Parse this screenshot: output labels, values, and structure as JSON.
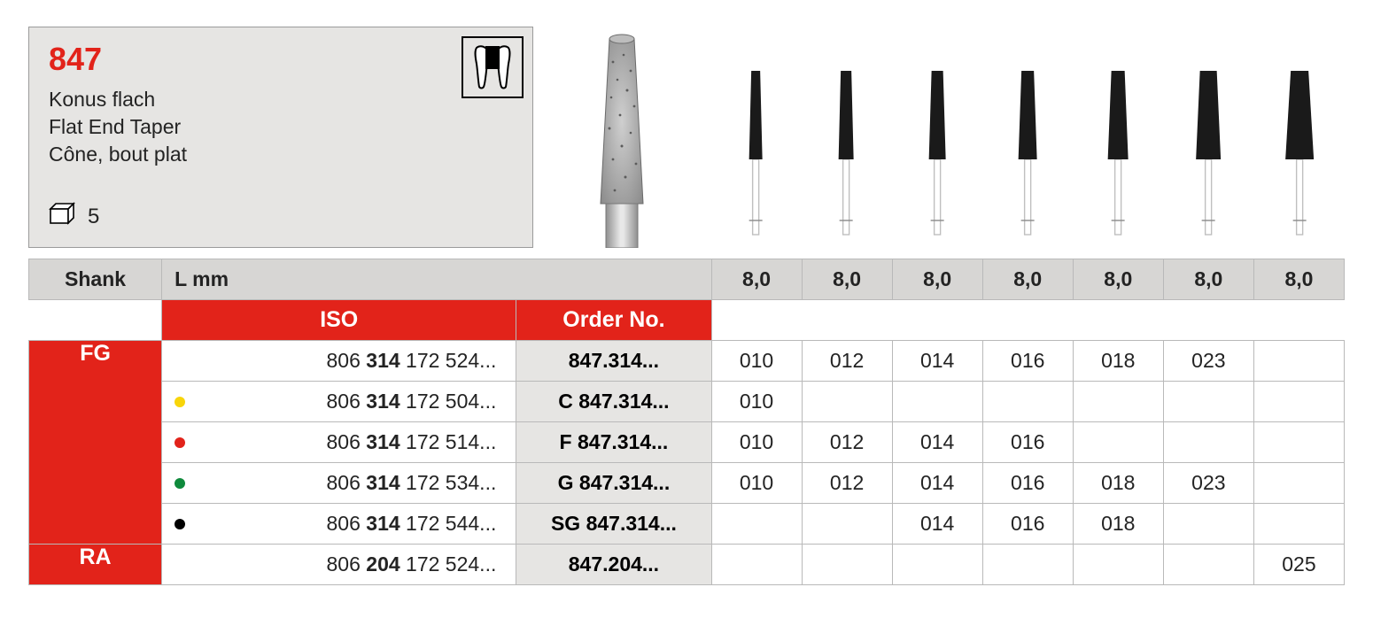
{
  "product": {
    "number": "847",
    "names": [
      "Konus flach",
      "Flat End Taper",
      "Cône, bout plat"
    ],
    "pack_qty": "5"
  },
  "colors": {
    "red": "#e2231a",
    "grey_header": "#d7d6d4",
    "grey_cell": "#e6e5e3",
    "grey_panel": "#e6e5e3",
    "cell_border": "#b9b9b9",
    "text": "#232323",
    "dot_yellow": "#f8d50a",
    "dot_red": "#e2231a",
    "dot_green": "#0f8a3c",
    "dot_black": "#000000"
  },
  "variants": {
    "top_widths": [
      10,
      12,
      13,
      14,
      15,
      19,
      20
    ],
    "bottom_widths": [
      15,
      17,
      19,
      21,
      23,
      28,
      32
    ],
    "head_len": 100,
    "shaft_len": 85,
    "fill": "#1a1a1a",
    "shaft_color": "#bfbfbf"
  },
  "headers": {
    "shank": "Shank",
    "lmm": "L mm",
    "iso": "ISO",
    "order": "Order No."
  },
  "lmm_row": [
    "8,0",
    "8,0",
    "8,0",
    "8,0",
    "8,0",
    "8,0",
    "8,0"
  ],
  "shank_labels": {
    "fg": "FG",
    "ra": "RA"
  },
  "rows": [
    {
      "shank": "FG",
      "dot": null,
      "iso_pre": "806 ",
      "iso_bold": "314",
      "iso_post": " 172 524...",
      "order": "847.314...",
      "cells": [
        "010",
        "012",
        "014",
        "016",
        "018",
        "023",
        ""
      ]
    },
    {
      "shank": "",
      "dot": "#f8d50a",
      "iso_pre": "806 ",
      "iso_bold": "314",
      "iso_post": " 172 504...",
      "order": "C 847.314...",
      "cells": [
        "010",
        "",
        "",
        "",
        "",
        "",
        ""
      ]
    },
    {
      "shank": "",
      "dot": "#e2231a",
      "iso_pre": "806 ",
      "iso_bold": "314",
      "iso_post": " 172 514...",
      "order": "F 847.314...",
      "cells": [
        "010",
        "012",
        "014",
        "016",
        "",
        "",
        ""
      ]
    },
    {
      "shank": "",
      "dot": "#0f8a3c",
      "iso_pre": "806 ",
      "iso_bold": "314",
      "iso_post": " 172 534...",
      "order": "G 847.314...",
      "cells": [
        "010",
        "012",
        "014",
        "016",
        "018",
        "023",
        ""
      ]
    },
    {
      "shank": "",
      "dot": "#000000",
      "iso_pre": "806 ",
      "iso_bold": "314",
      "iso_post": " 172 544...",
      "order": "SG 847.314...",
      "cells": [
        "",
        "",
        "014",
        "016",
        "018",
        "",
        ""
      ]
    },
    {
      "shank": "RA",
      "dot": null,
      "iso_pre": "806 ",
      "iso_bold": "204",
      "iso_post": " 172 524...",
      "order": "847.204...",
      "cells": [
        "",
        "",
        "",
        "",
        "",
        "",
        "025"
      ]
    }
  ]
}
